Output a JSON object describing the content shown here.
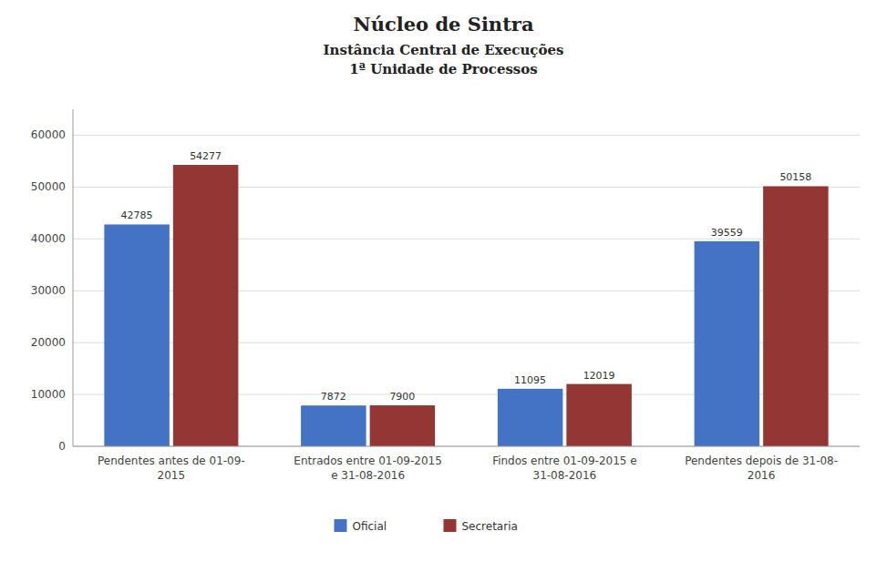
{
  "chart_data": {
    "type": "bar",
    "title": "Núcleo de Sintra",
    "subtitle": "Instância Central de Execuções\n1ª Unidade de Processos",
    "categories": [
      "Pendentes antes de 01-09-\n2015",
      "Entrados entre 01-09-2015\ne 31-08-2016",
      "Findos entre 01-09-2015 e\n31-08-2016",
      "Pendentes depois de 31-08-\n2016"
    ],
    "series": [
      {
        "name": "Oficial",
        "color": "#4472C4",
        "values": [
          42785,
          7872,
          11095,
          39559
        ]
      },
      {
        "name": "Secretaria",
        "color": "#943634",
        "values": [
          54277,
          7900,
          12019,
          50158
        ]
      }
    ],
    "ylim": [
      0,
      65000
    ],
    "yticks": [
      0,
      10000,
      20000,
      30000,
      40000,
      50000,
      60000
    ],
    "grid": true,
    "legend": "bottom",
    "data_labels": true
  }
}
